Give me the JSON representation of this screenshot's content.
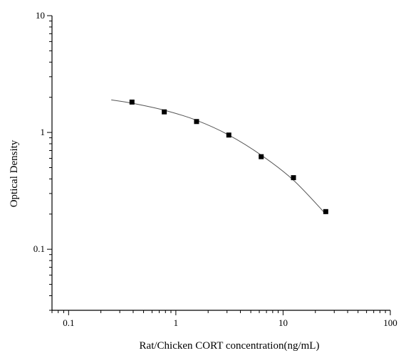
{
  "chart_data": {
    "type": "scatter",
    "title": "",
    "xlabel": "Rat/Chicken CORT concentration(ng/mL)",
    "ylabel": "Optical Density",
    "xscale": "log",
    "yscale": "log",
    "xlim": [
      0.07,
      100
    ],
    "ylim": [
      0.03,
      10
    ],
    "x_ticks": [
      {
        "value": 0.1,
        "label": "0.1"
      },
      {
        "value": 1,
        "label": "1"
      },
      {
        "value": 10,
        "label": "10"
      },
      {
        "value": 100,
        "label": "100"
      }
    ],
    "y_ticks": [
      {
        "value": 0.1,
        "label": "0.1"
      },
      {
        "value": 1,
        "label": "1"
      },
      {
        "value": 10,
        "label": "10"
      }
    ],
    "grid": false,
    "legend": "none",
    "marker_color": "#000000",
    "line_color": "#555555",
    "points": [
      {
        "x": 0.39,
        "y": 1.82
      },
      {
        "x": 0.78,
        "y": 1.5
      },
      {
        "x": 1.56,
        "y": 1.24
      },
      {
        "x": 3.12,
        "y": 0.95
      },
      {
        "x": 6.25,
        "y": 0.62
      },
      {
        "x": 12.5,
        "y": 0.41
      },
      {
        "x": 25,
        "y": 0.21
      }
    ],
    "fit_curve": [
      {
        "x": 0.25,
        "y": 1.9
      },
      {
        "x": 0.39,
        "y": 1.78
      },
      {
        "x": 0.78,
        "y": 1.55
      },
      {
        "x": 1.56,
        "y": 1.27
      },
      {
        "x": 3.12,
        "y": 0.95
      },
      {
        "x": 6.25,
        "y": 0.64
      },
      {
        "x": 12.5,
        "y": 0.39
      },
      {
        "x": 25,
        "y": 0.2
      }
    ]
  }
}
